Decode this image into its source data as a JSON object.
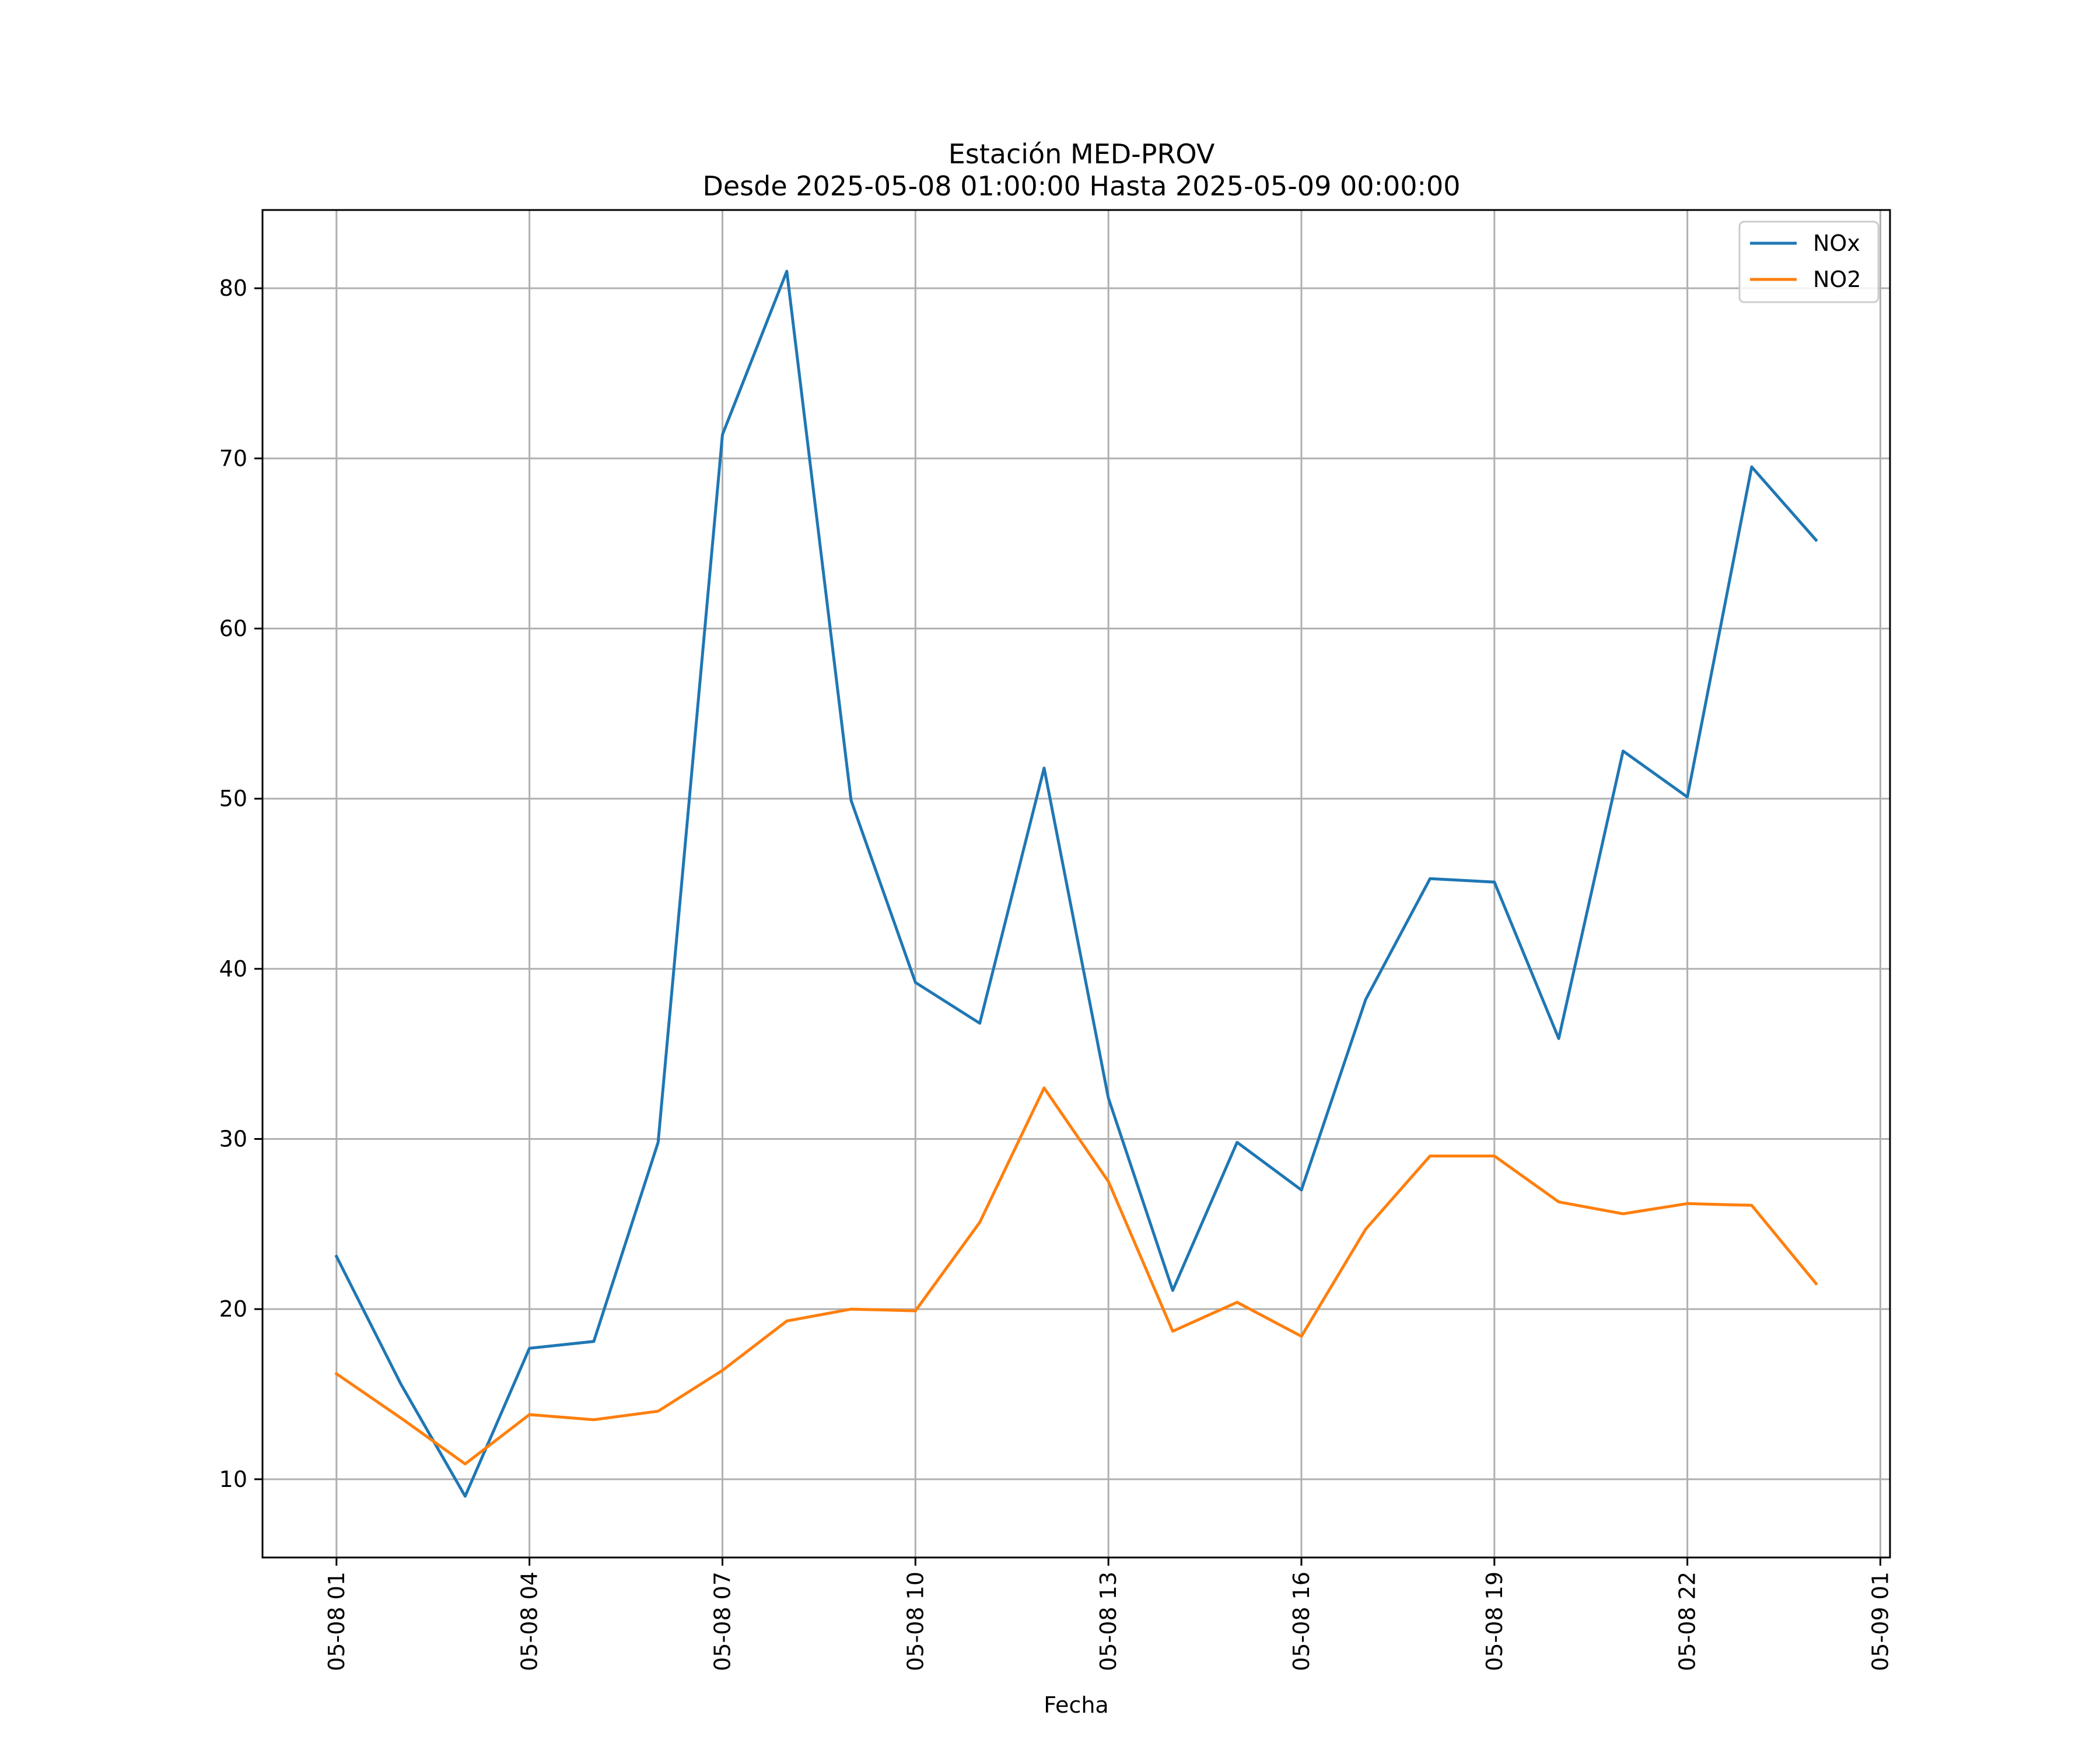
{
  "chart_data": {
    "type": "line",
    "title": [
      "Estación MED-PROV",
      "Desde 2025-05-08 01:00:00 Hasta 2025-05-09 00:00:00"
    ],
    "xlabel": "Fecha",
    "ylabel": "",
    "x": [
      "2025-05-08 01:00",
      "2025-05-08 02:00",
      "2025-05-08 03:00",
      "2025-05-08 04:00",
      "2025-05-08 05:00",
      "2025-05-08 06:00",
      "2025-05-08 07:00",
      "2025-05-08 08:00",
      "2025-05-08 09:00",
      "2025-05-08 10:00",
      "2025-05-08 11:00",
      "2025-05-08 12:00",
      "2025-05-08 13:00",
      "2025-05-08 14:00",
      "2025-05-08 15:00",
      "2025-05-08 16:00",
      "2025-05-08 17:00",
      "2025-05-08 18:00",
      "2025-05-08 19:00",
      "2025-05-08 20:00",
      "2025-05-08 21:00",
      "2025-05-08 22:00",
      "2025-05-08 23:00",
      "2025-05-09 00:00"
    ],
    "series": [
      {
        "name": "NOx",
        "color": "#1f77b4",
        "values": [
          23.1,
          15.6,
          9.0,
          17.7,
          18.1,
          29.8,
          71.4,
          81.0,
          49.9,
          39.2,
          36.8,
          51.8,
          32.4,
          21.1,
          29.8,
          27.0,
          38.2,
          45.3,
          45.1,
          35.9,
          52.8,
          50.1,
          69.5,
          65.2
        ]
      },
      {
        "name": "NO2",
        "color": "#ff7f0e",
        "values": [
          16.2,
          13.6,
          10.9,
          13.8,
          13.5,
          14.0,
          16.4,
          19.3,
          20.0,
          19.9,
          25.1,
          33.0,
          27.5,
          18.7,
          20.4,
          18.4,
          24.7,
          29.0,
          29.0,
          26.3,
          25.6,
          26.2,
          26.1,
          21.5
        ]
      }
    ],
    "xticks": [
      "05-08 01",
      "05-08 04",
      "05-08 07",
      "05-08 10",
      "05-08 13",
      "05-08 16",
      "05-08 19",
      "05-08 22",
      "05-09 01"
    ],
    "xtick_hours": [
      0,
      3,
      6,
      9,
      12,
      15,
      18,
      21,
      24
    ],
    "xlim_hours": [
      -1.15,
      24.15
    ],
    "yticks": [
      10,
      20,
      30,
      40,
      50,
      60,
      70,
      80
    ],
    "ylim": [
      5.4,
      84.6
    ],
    "grid": true,
    "legend_position": "top-right"
  }
}
